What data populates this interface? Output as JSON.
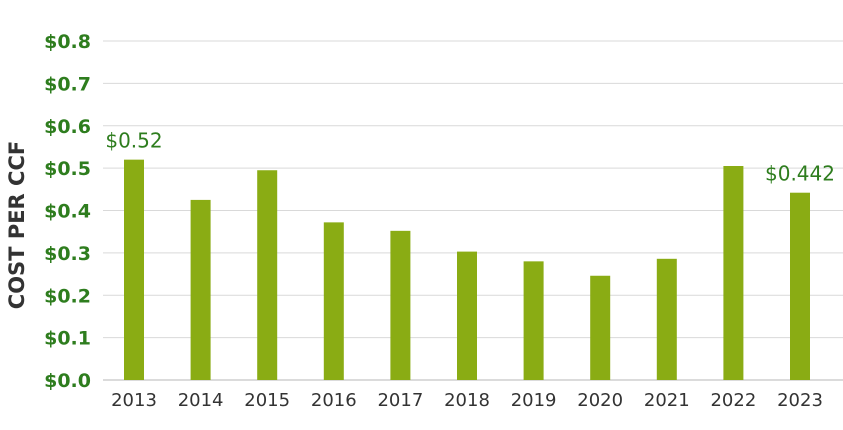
{
  "chart_data": {
    "type": "bar",
    "title": "",
    "xlabel": "",
    "ylabel": "COST PER CCF",
    "categories": [
      "2013",
      "2014",
      "2015",
      "2016",
      "2017",
      "2018",
      "2019",
      "2020",
      "2021",
      "2022",
      "2023"
    ],
    "values": [
      0.52,
      0.425,
      0.495,
      0.372,
      0.352,
      0.303,
      0.28,
      0.246,
      0.286,
      0.505,
      0.442
    ],
    "ylim": [
      0,
      0.8
    ],
    "yticks": [
      "$0.0",
      "$0.1",
      "$0.2",
      "$0.3",
      "$0.4",
      "$0.5",
      "$0.6",
      "$0.7",
      "$0.8"
    ],
    "data_labels": [
      {
        "category": "2013",
        "text": "$0.52"
      },
      {
        "category": "2023",
        "text": "$0.442"
      }
    ],
    "grid": true,
    "legend": "none",
    "colors": {
      "bar": "#8aac14",
      "axis_text": "#2e7d1e",
      "category_text": "#333333",
      "grid": "#d9d9d9"
    }
  }
}
